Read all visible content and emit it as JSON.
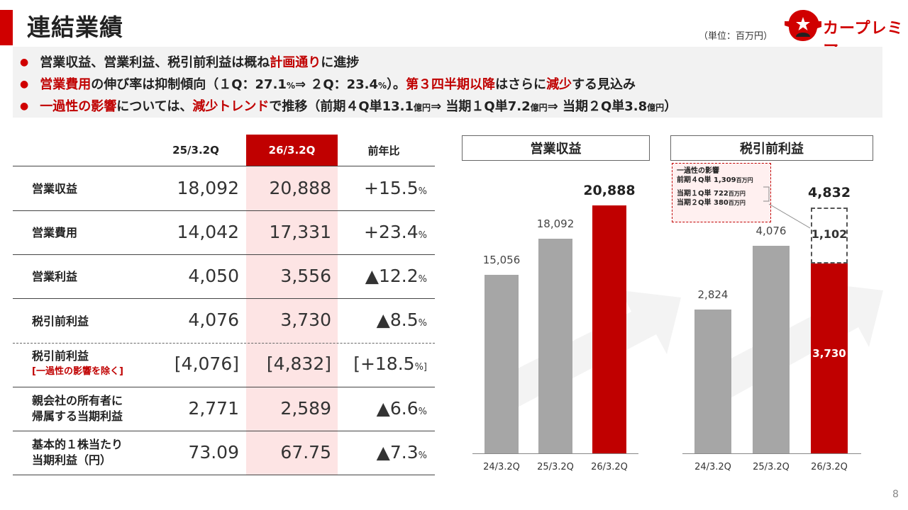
{
  "page": {
    "title": "連結業績",
    "unit": "（単位：百万円）",
    "logo_text": "カープレミア",
    "page_number": "8"
  },
  "summary": {
    "line1": {
      "a": "営業収益、営業利益、税引前利益は概ね",
      "b": "計画通り",
      "c": "に進捗"
    },
    "line2": {
      "a": "営業費用",
      "b": "の伸び率は抑制傾向（１Q：27.1",
      "c": "%",
      "d": "⇒ ２Q：23.4",
      "e": "%",
      "f": "）。",
      "g": "第３四半期以降",
      "h": "はさらに",
      "i": "減少",
      "j": "する見込み"
    },
    "line3": {
      "a": "一過性の影響",
      "b": "については、",
      "c": "減少トレンド",
      "d": "で推移（前期４Q単13.1",
      "e": "億円",
      "f": "⇒ 当期１Q単7.2",
      "g": "億円",
      "h": "⇒ 当期２Q単3.8",
      "i": "億円",
      "j": "）"
    }
  },
  "table": {
    "headers": [
      "25/3.2Q",
      "26/3.2Q",
      "前年比"
    ],
    "rows": [
      {
        "label": "営業収益",
        "prev": "18,092",
        "cur": "20,888",
        "change": "+15.5",
        "unit": "%"
      },
      {
        "label": "営業費用",
        "prev": "14,042",
        "cur": "17,331",
        "change": "+23.4",
        "unit": "%"
      },
      {
        "label": "営業利益",
        "prev": "4,050",
        "cur": "3,556",
        "change": "▲12.2",
        "unit": "%"
      },
      {
        "label": "税引前利益",
        "prev": "4,076",
        "cur": "3,730",
        "change": "▲8.5",
        "unit": "%"
      },
      {
        "label": "税引前利益",
        "sublabel": "[一過性の影響を除く]",
        "prev": "[4,076]",
        "cur": "[4,832]",
        "change": "[+18.5",
        "unit": "%]"
      },
      {
        "label": "親会社の所有者に",
        "label2": "帰属する当期利益",
        "prev": "2,771",
        "cur": "2,589",
        "change": "▲6.6",
        "unit": "%"
      },
      {
        "label": "基本的１株当たり",
        "label2": "当期利益（円）",
        "prev": "73.09",
        "cur": "67.75",
        "change": "▲7.3",
        "unit": "%"
      }
    ]
  },
  "chart_data": [
    {
      "type": "bar",
      "title": "営業収益",
      "categories": [
        "24/3.2Q",
        "25/3.2Q",
        "26/3.2Q"
      ],
      "values": [
        15056,
        18092,
        20888
      ],
      "value_labels": [
        "15,056",
        "18,092",
        "20,888"
      ],
      "colors": [
        "#a6a6a6",
        "#a6a6a6",
        "#c00000"
      ]
    },
    {
      "type": "bar",
      "title": "税引前利益",
      "categories": [
        "24/3.2Q",
        "25/3.2Q",
        "26/3.2Q"
      ],
      "values": [
        2824,
        4076,
        3730
      ],
      "value_labels": [
        "2,824",
        "4,076",
        "3,730"
      ],
      "stack_top": {
        "value": 1102,
        "label": "1,102",
        "total_label": "4,832"
      },
      "colors": [
        "#a6a6a6",
        "#a6a6a6",
        "#c00000"
      ],
      "note": {
        "title": "一過性の影響",
        "line1": "前期４Q単 1,309",
        "line1_unit": "百万円",
        "line2": "当期１Q単 722",
        "line2_unit": "百万円",
        "line3": "当期２Q単 380",
        "line3_unit": "百万円"
      }
    }
  ],
  "colors": {
    "accent": "#c00000",
    "grey": "#a6a6a6",
    "highlight": "#fde4e4",
    "decrease": "#2f4f8f"
  }
}
